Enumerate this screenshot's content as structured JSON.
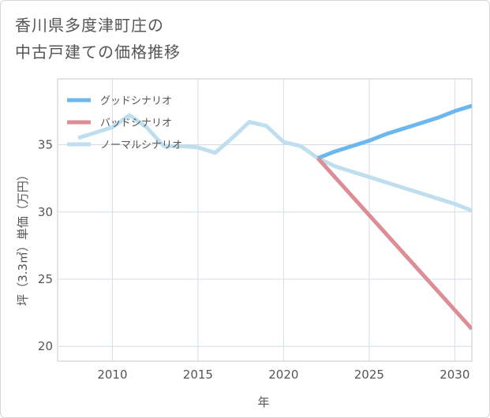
{
  "title": {
    "line1": "香川県多度津町庄の",
    "line2": "中古戸建ての価格推移"
  },
  "chart_data": {
    "type": "line",
    "xlabel": "年",
    "ylabel": "坪（3.3㎡）単価（万円）",
    "xlim": [
      2006.8,
      2031.0
    ],
    "ylim": [
      18.9,
      39.9
    ],
    "xticks": [
      2010,
      2015,
      2020,
      2025,
      2030
    ],
    "yticks": [
      20,
      25,
      30,
      35
    ],
    "grid": true,
    "legend_position": "top-left",
    "series": [
      {
        "name": "グッドシナリオ",
        "color": "#6cb8ee",
        "x": [
          2022,
          2023,
          2024,
          2025,
          2026,
          2027,
          2028,
          2029,
          2030,
          2031
        ],
        "y": [
          34.0,
          34.5,
          34.9,
          35.3,
          35.8,
          36.2,
          36.6,
          37.0,
          37.5,
          37.9
        ]
      },
      {
        "name": "バッドシナリオ",
        "color": "#dd8d95",
        "x": [
          2022,
          2031
        ],
        "y": [
          34.0,
          21.3
        ]
      },
      {
        "name": "ノーマルシナリオ",
        "color": "#bfdfee",
        "x": [
          2008,
          2009,
          2010,
          2011,
          2012,
          2013,
          2014,
          2015,
          2016,
          2017,
          2018,
          2019,
          2020,
          2021,
          2022,
          2023,
          2024,
          2025,
          2026,
          2027,
          2028,
          2029,
          2030,
          2031
        ],
        "y": [
          35.5,
          35.9,
          36.3,
          37.2,
          36.3,
          34.9,
          34.9,
          34.8,
          34.4,
          35.5,
          36.7,
          36.4,
          35.2,
          34.9,
          34.0,
          33.4,
          33.0,
          32.6,
          32.2,
          31.8,
          31.4,
          31.0,
          30.6,
          30.1
        ]
      }
    ]
  }
}
